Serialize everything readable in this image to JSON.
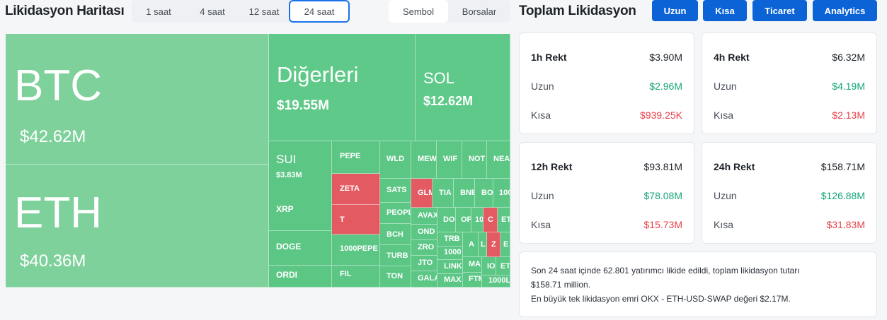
{
  "header": {
    "title": "Likidasyon Haritası",
    "time_tabs": [
      "1 saat",
      "4 saat",
      "12 saat",
      "24 saat"
    ],
    "active_time_tab": "24 saat",
    "view_tabs": [
      "Sembol",
      "Borsalar"
    ],
    "active_view_tab": "Sembol"
  },
  "right": {
    "title": "Toplam Likidasyon",
    "buttons": [
      "Uzun",
      "Kısa",
      "Ticaret",
      "Analytics"
    ]
  },
  "treemap": {
    "btc": {
      "sym": "BTC",
      "val": "$42.62M"
    },
    "eth": {
      "sym": "ETH",
      "val": "$40.36M"
    },
    "others": {
      "sym": "Diğerleri",
      "val": "$19.55M"
    },
    "sol": {
      "sym": "SOL",
      "val": "$12.62M"
    },
    "sui": {
      "sym": "SUI",
      "val": "$3.83M"
    },
    "xrp": "XRP",
    "doge": "DOGE",
    "ordi": "ORDI",
    "pepe": "PEPE",
    "zeta": "ZETA",
    "t": "T",
    "pepe1000": "1000PEPE",
    "fil": "FIL",
    "wld": "WLD",
    "sats": "SATS",
    "people": "PEOPL",
    "bch": "BCH",
    "turbo": "TURB",
    "ton": "TON",
    "mew": "MEW",
    "wif": "WIF",
    "not": "NOT",
    "near": "NEA",
    "glm": "GLM",
    "tia": "TIA",
    "bnb": "BNB",
    "bome": "BO",
    "k1000": "100",
    "avax": "AVAX",
    "ondo": "OND",
    "zro": "ZRO",
    "jto": "JTO",
    "gala": "GALA",
    "dot": "DO",
    "op": "OP",
    "t10": "10",
    "c": "C",
    "et": "ET",
    "trb": "TRB",
    "x1000": "1000",
    "link": "LINK",
    "max": "MAX",
    "a": "A",
    "l": "L",
    "z": "Z",
    "e": "E",
    "ma": "MA",
    "ftm": "FTM",
    "io": "IO",
    "et2": "ET",
    "s1000l": "1000L"
  },
  "stats": [
    {
      "title": "1h Rekt",
      "total": "$3.90M",
      "long_label": "Uzun",
      "long": "$2.96M",
      "short_label": "Kısa",
      "short": "$939.25K"
    },
    {
      "title": "4h Rekt",
      "total": "$6.32M",
      "long_label": "Uzun",
      "long": "$4.19M",
      "short_label": "Kısa",
      "short": "$2.13M"
    },
    {
      "title": "12h Rekt",
      "total": "$93.81M",
      "long_label": "Uzun",
      "long": "$78.08M",
      "short_label": "Kısa",
      "short": "$15.73M"
    },
    {
      "title": "24h Rekt",
      "total": "$158.71M",
      "long_label": "Uzun",
      "long": "$126.88M",
      "short_label": "Kısa",
      "short": "$31.83M"
    }
  ],
  "info": {
    "line1": "Son 24 saat içinde 62.801 yatırımcı likide edildi, toplam likidasyon tutarı",
    "line2": "$158.71 million.",
    "line3": "En büyük tek likidasyon emri OKX - ETH-USD-SWAP değeri $2.17M."
  }
}
